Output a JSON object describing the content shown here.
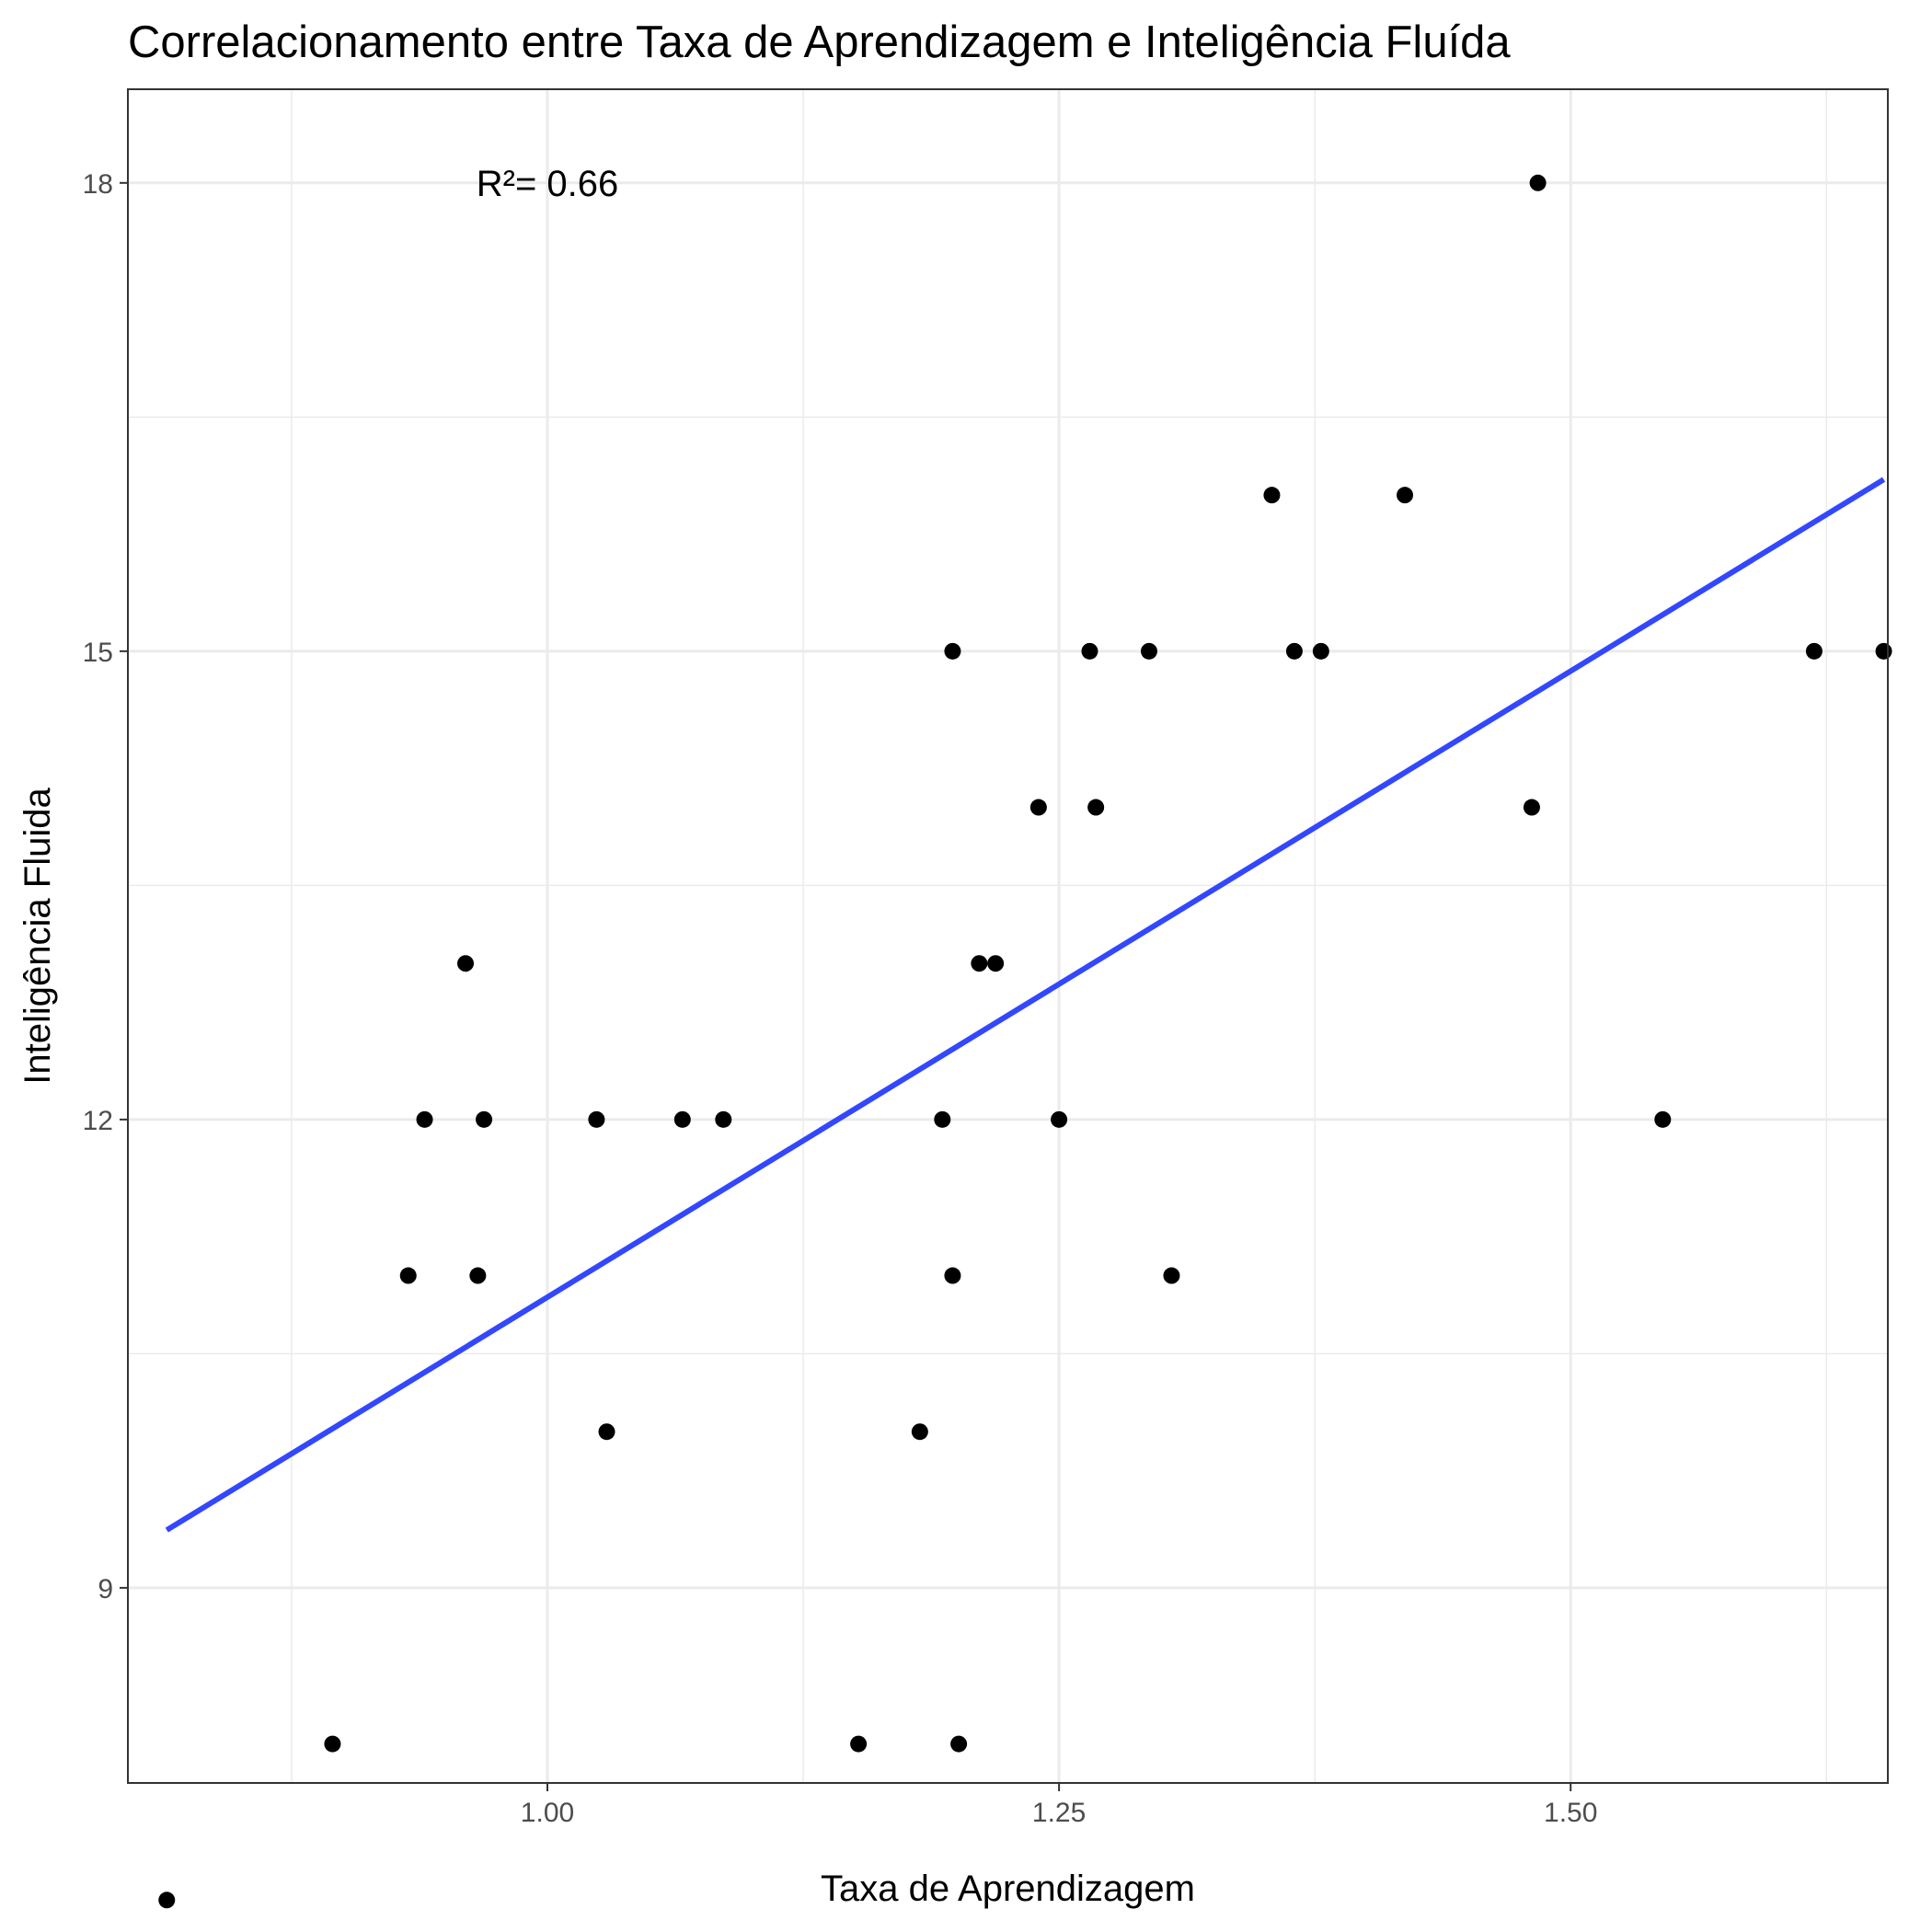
{
  "chart_data": {
    "type": "scatter",
    "title": "Correlacionamento entre Taxa de Aprendizagem e Inteligência Fluída",
    "xlabel": "Taxa de Aprendizagem",
    "ylabel": "Inteligência Fluida",
    "xlim": [
      0.795,
      1.655
    ],
    "ylim": [
      7.75,
      18.6
    ],
    "x_ticks": [
      1.0,
      1.25,
      1.5
    ],
    "x_tick_labels": [
      "1.00",
      "1.25",
      "1.50"
    ],
    "x_minor_ticks": [
      0.875,
      1.125,
      1.375,
      1.625
    ],
    "y_ticks": [
      9,
      12,
      15,
      18
    ],
    "y_tick_labels": [
      "9",
      "12",
      "15",
      "18"
    ],
    "y_minor_ticks": [
      10.5,
      13.5,
      16.5
    ],
    "grid": true,
    "theme": "bw",
    "annotation": {
      "text": "R²= 0.66",
      "x": 1.0,
      "y": 18
    },
    "points": [
      {
        "x": 0.814,
        "y": 7.0
      },
      {
        "x": 0.895,
        "y": 8.0
      },
      {
        "x": 0.932,
        "y": 11.0
      },
      {
        "x": 0.94,
        "y": 12.0
      },
      {
        "x": 0.96,
        "y": 13.0
      },
      {
        "x": 0.966,
        "y": 11.0
      },
      {
        "x": 0.969,
        "y": 12.0
      },
      {
        "x": 1.024,
        "y": 12.0
      },
      {
        "x": 1.029,
        "y": 10.0
      },
      {
        "x": 1.066,
        "y": 12.0
      },
      {
        "x": 1.086,
        "y": 12.0
      },
      {
        "x": 1.152,
        "y": 8.0
      },
      {
        "x": 1.182,
        "y": 10.0
      },
      {
        "x": 1.193,
        "y": 12.0
      },
      {
        "x": 1.198,
        "y": 15.0
      },
      {
        "x": 1.198,
        "y": 11.0
      },
      {
        "x": 1.201,
        "y": 8.0
      },
      {
        "x": 1.211,
        "y": 13.0
      },
      {
        "x": 1.219,
        "y": 13.0
      },
      {
        "x": 1.24,
        "y": 14.0
      },
      {
        "x": 1.25,
        "y": 12.0
      },
      {
        "x": 1.265,
        "y": 15.0
      },
      {
        "x": 1.268,
        "y": 14.0
      },
      {
        "x": 1.294,
        "y": 15.0
      },
      {
        "x": 1.305,
        "y": 11.0
      },
      {
        "x": 1.354,
        "y": 16.0
      },
      {
        "x": 1.365,
        "y": 15.0
      },
      {
        "x": 1.378,
        "y": 15.0
      },
      {
        "x": 1.419,
        "y": 16.0
      },
      {
        "x": 1.481,
        "y": 14.0
      },
      {
        "x": 1.484,
        "y": 18.0
      },
      {
        "x": 1.545,
        "y": 12.0
      },
      {
        "x": 1.619,
        "y": 15.0
      },
      {
        "x": 1.653,
        "y": 15.0
      }
    ],
    "trend_line": {
      "x": [
        0.814,
        1.653
      ],
      "y": [
        9.37,
        16.1
      ]
    },
    "colors": {
      "points": "#000000",
      "trend_line": "#3347ff",
      "grid": "#ebebeb",
      "panel_border": "#333333",
      "tick_text": "#4d4d4d",
      "background": "#ffffff"
    }
  }
}
